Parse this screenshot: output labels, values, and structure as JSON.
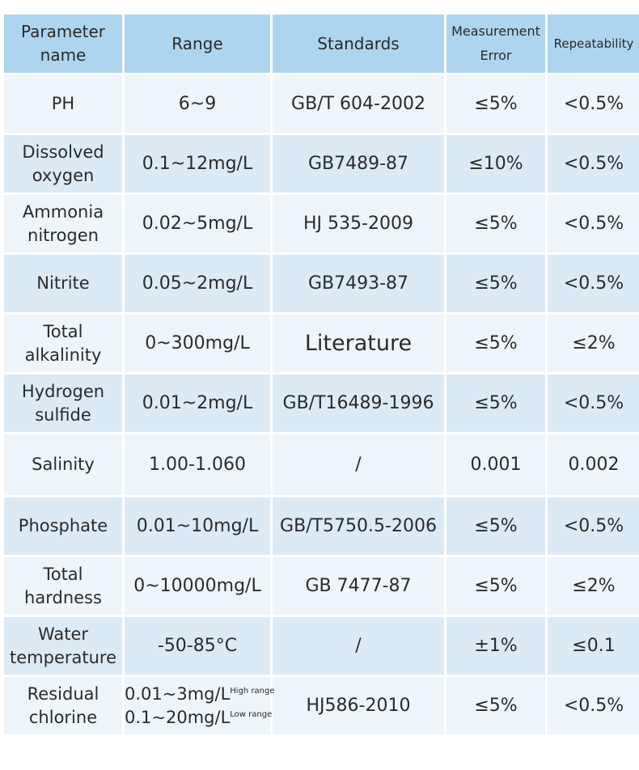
{
  "columns": [
    "Parameter name",
    "Range",
    "Standards",
    "Measurement Error",
    "Repeatability"
  ],
  "header": {
    "col1_line1": "Parameter",
    "col1_line2": "name",
    "col2": "Range",
    "col3": "Standards",
    "col4_line1": "Measurement",
    "col4_line2": "Error",
    "col5": "Repeatability"
  },
  "rows": [
    {
      "name_line1": "PH",
      "name_line2": "",
      "range": "6~9",
      "standard": "GB/T 604-2002",
      "error": "≤5%",
      "repeatability": "<0.5%"
    },
    {
      "name_line1": "Dissolved",
      "name_line2": "oxygen",
      "range": "0.1~12mg/L",
      "standard": "GB7489-87",
      "error": "≤10%",
      "repeatability": "<0.5%"
    },
    {
      "name_line1": "Ammonia",
      "name_line2": "nitrogen",
      "range": "0.02~5mg/L",
      "standard": "HJ 535-2009",
      "error": "≤5%",
      "repeatability": "<0.5%"
    },
    {
      "name_line1": "Nitrite",
      "name_line2": "",
      "range": "0.05~2mg/L",
      "standard": "GB7493-87",
      "error": "≤5%",
      "repeatability": "<0.5%"
    },
    {
      "name_line1": "Total",
      "name_line2": "alkalinity",
      "range": "0~300mg/L",
      "standard": "Literature",
      "error": "≤5%",
      "repeatability": "≤2%"
    },
    {
      "name_line1": "Hydrogen",
      "name_line2": "sulfide",
      "range": "0.01~2mg/L",
      "standard": "GB/T16489-1996",
      "error": "≤5%",
      "repeatability": "<0.5%"
    },
    {
      "name_line1": "Salinity",
      "name_line2": "",
      "range": "1.00-1.060",
      "standard": "/",
      "error": "0.001",
      "repeatability": "0.002"
    },
    {
      "name_line1": "Phosphate",
      "name_line2": "",
      "range": "0.01~10mg/L",
      "standard": "GB/T5750.5-2006",
      "error": "≤5%",
      "repeatability": "<0.5%"
    },
    {
      "name_line1": "Total",
      "name_line2": "hardness",
      "range": "0~10000mg/L",
      "standard": "GB 7477-87",
      "error": "≤5%",
      "repeatability": "≤2%"
    },
    {
      "name_line1": "Water",
      "name_line2": "temperature",
      "range": "-50-85°C",
      "standard": "/",
      "error": "±1%",
      "repeatability": "≤0.1"
    },
    {
      "name_line1": "Residual",
      "name_line2": "chlorine",
      "range_high": "0.01~3mg/L",
      "range_high_note": "High range",
      "range_low": "0.1~20mg/L",
      "range_low_note": "Low range",
      "standard": "HJ586-2010",
      "error": "≤5%",
      "repeatability": "<0.5%"
    }
  ],
  "colors": {
    "header_bg": "#aed5ef",
    "row_light": "#eef5fb",
    "row_dark": "#dceaf6"
  }
}
